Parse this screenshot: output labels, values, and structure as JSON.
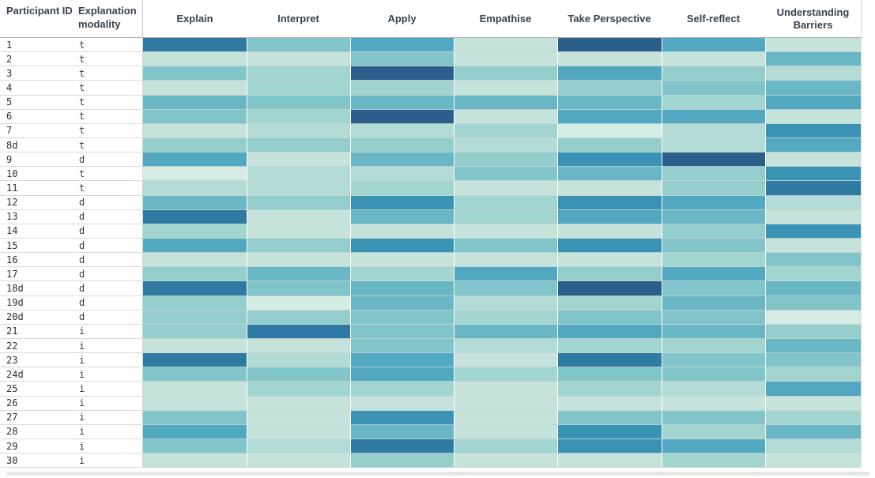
{
  "header": {
    "row_id_header": "Participant ID",
    "modality_header": "Explanation modality"
  },
  "chart_data": {
    "type": "heatmap",
    "title": "",
    "columns": [
      "Explain",
      "Interpret",
      "Apply",
      "Empathise",
      "Take Perspective",
      "Self-reflect",
      "Understanding Barriers"
    ],
    "row_id_header": "Participant ID",
    "modality_header": "Explanation modality",
    "modality_values": [
      "t",
      "d",
      "i"
    ],
    "scale": {
      "min": 0,
      "max": 10,
      "description": "Ordinal color intensity estimated from cell shade; 0 = palest green, 10 = darkest blue"
    },
    "palette": [
      "#d5ece4",
      "#c6e3db",
      "#b3dbd5",
      "#a3d5d0",
      "#93cecd",
      "#81c4c9",
      "#69b6c4",
      "#52a8c0",
      "#3a92b4",
      "#2f7aa3",
      "#2c5e8c"
    ],
    "legend_position": "none",
    "grid": "white gaps between columns, light gray lines between rows",
    "rows": [
      {
        "id": "1",
        "modality": "t",
        "levels": [
          9,
          5,
          7,
          1,
          10,
          7,
          1
        ]
      },
      {
        "id": "2",
        "modality": "t",
        "levels": [
          1,
          1,
          5,
          1,
          1,
          1,
          6
        ]
      },
      {
        "id": "3",
        "modality": "t",
        "levels": [
          5,
          3,
          10,
          4,
          7,
          4,
          2
        ]
      },
      {
        "id": "4",
        "modality": "t",
        "levels": [
          1,
          3,
          3,
          1,
          4,
          5,
          6
        ]
      },
      {
        "id": "5",
        "modality": "t",
        "levels": [
          6,
          5,
          6,
          6,
          6,
          3,
          7
        ]
      },
      {
        "id": "6",
        "modality": "t",
        "levels": [
          5,
          3,
          10,
          1,
          7,
          7,
          1
        ]
      },
      {
        "id": "7",
        "modality": "t",
        "levels": [
          1,
          2,
          2,
          3,
          0,
          2,
          8
        ]
      },
      {
        "id": "8d",
        "modality": "t",
        "levels": [
          4,
          4,
          4,
          2,
          4,
          2,
          7
        ]
      },
      {
        "id": "9",
        "modality": "d",
        "levels": [
          7,
          1,
          6,
          4,
          8,
          10,
          1
        ]
      },
      {
        "id": "10",
        "modality": "t",
        "levels": [
          0,
          2,
          2,
          5,
          6,
          4,
          8
        ]
      },
      {
        "id": "11",
        "modality": "t",
        "levels": [
          2,
          2,
          3,
          1,
          1,
          4,
          9
        ]
      },
      {
        "id": "12",
        "modality": "d",
        "levels": [
          6,
          4,
          8,
          3,
          8,
          7,
          2
        ]
      },
      {
        "id": "13",
        "modality": "d",
        "levels": [
          9,
          1,
          6,
          3,
          7,
          6,
          1
        ]
      },
      {
        "id": "14",
        "modality": "d",
        "levels": [
          3,
          1,
          1,
          1,
          1,
          4,
          8
        ]
      },
      {
        "id": "15",
        "modality": "d",
        "levels": [
          7,
          4,
          8,
          5,
          8,
          5,
          1
        ]
      },
      {
        "id": "16",
        "modality": "d",
        "levels": [
          1,
          1,
          1,
          1,
          1,
          3,
          5
        ]
      },
      {
        "id": "17",
        "modality": "d",
        "levels": [
          4,
          6,
          3,
          7,
          4,
          7,
          3
        ]
      },
      {
        "id": "18d",
        "modality": "d",
        "levels": [
          9,
          5,
          6,
          5,
          10,
          5,
          6
        ]
      },
      {
        "id": "19d",
        "modality": "d",
        "levels": [
          4,
          0,
          6,
          2,
          3,
          6,
          5
        ]
      },
      {
        "id": "20d",
        "modality": "d",
        "levels": [
          4,
          4,
          5,
          3,
          5,
          5,
          0
        ]
      },
      {
        "id": "21",
        "modality": "i",
        "levels": [
          4,
          9,
          5,
          6,
          7,
          6,
          4
        ]
      },
      {
        "id": "22",
        "modality": "i",
        "levels": [
          1,
          1,
          5,
          2,
          3,
          3,
          6
        ]
      },
      {
        "id": "23",
        "modality": "i",
        "levels": [
          9,
          2,
          7,
          1,
          9,
          5,
          5
        ]
      },
      {
        "id": "24d",
        "modality": "i",
        "levels": [
          5,
          5,
          7,
          3,
          5,
          5,
          3
        ]
      },
      {
        "id": "25",
        "modality": "i",
        "levels": [
          1,
          3,
          3,
          1,
          3,
          2,
          7
        ]
      },
      {
        "id": "26",
        "modality": "i",
        "levels": [
          1,
          1,
          1,
          1,
          1,
          1,
          1
        ]
      },
      {
        "id": "27",
        "modality": "i",
        "levels": [
          5,
          1,
          8,
          1,
          5,
          5,
          3
        ]
      },
      {
        "id": "28",
        "modality": "i",
        "levels": [
          7,
          1,
          6,
          1,
          8,
          3,
          6
        ]
      },
      {
        "id": "29",
        "modality": "i",
        "levels": [
          5,
          2,
          9,
          3,
          8,
          7,
          2
        ]
      },
      {
        "id": "30",
        "modality": "i",
        "levels": [
          1,
          1,
          4,
          1,
          1,
          3,
          1
        ]
      }
    ]
  }
}
